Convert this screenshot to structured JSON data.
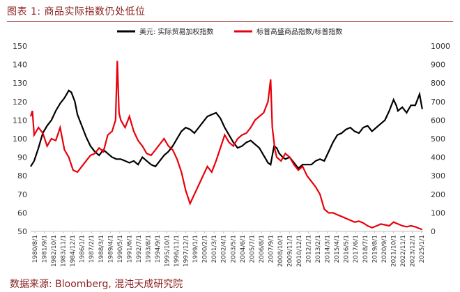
{
  "header": {
    "title": "图表 1: 商品实际指数仍处低位"
  },
  "footer": {
    "source": "数据来源: Bloomberg, 混沌天成研究院"
  },
  "chart_data": {
    "type": "line",
    "left_axis": {
      "min": 50,
      "max": 150,
      "step": 10,
      "labels": [
        "150",
        "140",
        "130",
        "120",
        "110",
        "100",
        "90",
        "80",
        "70",
        "60",
        "50"
      ]
    },
    "right_axis": {
      "min": 0,
      "max": 1000,
      "step": 100,
      "labels": [
        "1000",
        "900",
        "800",
        "700",
        "600",
        "500",
        "400",
        "300",
        "200",
        "100",
        "0"
      ]
    },
    "x_labels": [
      "1980/8/1",
      "1981/9/1",
      "1982/10/1",
      "1983/11/1",
      "1984/12/1",
      "1986/1/1",
      "1987/2/1",
      "1988/3/1",
      "1989/4/1",
      "1990/5/1",
      "1991/6/1",
      "1992/7/1",
      "1993/8/1",
      "1994/9/1",
      "1995/10/1",
      "1996/11/1",
      "1997/12/1",
      "1999/1/1",
      "2000/2/1",
      "2001/3/1",
      "2002/4/1",
      "2003/5/1",
      "2004/6/1",
      "2005/7/1",
      "2006/8/1",
      "2007/9/1",
      "2008/10/1",
      "2009/11/1",
      "2010/12/1",
      "2012/1/1",
      "2013/2/1",
      "2014/3/1",
      "2015/4/1",
      "2016/5/1",
      "2017/6/1",
      "2018/7/1",
      "2019/8/1",
      "2020/9/1",
      "2021/10/1",
      "2022/11/1",
      "2023/12/1",
      "2025/1/1"
    ],
    "series": [
      {
        "name": "美元: 实际贸易加权指数",
        "axis": "left",
        "color": "#000000",
        "x": [
          1980.6,
          1981.0,
          1981.5,
          1982.0,
          1982.5,
          1983.0,
          1983.5,
          1984.0,
          1984.5,
          1985.0,
          1985.3,
          1985.7,
          1986.0,
          1986.5,
          1987.0,
          1987.5,
          1988.0,
          1988.5,
          1989.0,
          1989.5,
          1990.0,
          1990.5,
          1991.0,
          1991.5,
          1992.0,
          1992.5,
          1993.0,
          1993.5,
          1994.0,
          1994.5,
          1995.0,
          1995.5,
          1996.0,
          1996.5,
          1997.0,
          1997.5,
          1998.0,
          1998.5,
          1999.0,
          1999.5,
          2000.0,
          2000.5,
          2001.0,
          2001.5,
          2002.0,
          2002.5,
          2003.0,
          2003.5,
          2004.0,
          2004.5,
          2005.0,
          2005.5,
          2006.0,
          2006.5,
          2007.0,
          2007.5,
          2008.0,
          2008.3,
          2008.7,
          2009.0,
          2009.3,
          2009.7,
          2010.0,
          2010.5,
          2011.0,
          2011.5,
          2012.0,
          2012.5,
          2013.0,
          2013.5,
          2014.0,
          2014.5,
          2015.0,
          2015.5,
          2016.0,
          2016.5,
          2017.0,
          2017.5,
          2018.0,
          2018.5,
          2019.0,
          2019.5,
          2020.0,
          2020.5,
          2021.0,
          2021.5,
          2022.0,
          2022.5,
          2022.8,
          2023.0,
          2023.5,
          2024.0,
          2024.5,
          2025.0,
          2025.5,
          2025.8
        ],
        "values": [
          85,
          88,
          95,
          103,
          107,
          110,
          115,
          119,
          122,
          126,
          125,
          120,
          113,
          107,
          101,
          96,
          93,
          91,
          94,
          92,
          90,
          89,
          89,
          88,
          87,
          88,
          86,
          90,
          88,
          86,
          85,
          88,
          91,
          93,
          96,
          100,
          104,
          106,
          105,
          103,
          106,
          109,
          112,
          113,
          114,
          111,
          106,
          102,
          98,
          95,
          96,
          98,
          99,
          97,
          95,
          91,
          87,
          86,
          96,
          95,
          92,
          90,
          89,
          90,
          87,
          84,
          86,
          86,
          86,
          88,
          89,
          88,
          93,
          98,
          102,
          103,
          105,
          106,
          104,
          103,
          106,
          107,
          104,
          106,
          108,
          110,
          115,
          121,
          118,
          115,
          117,
          114,
          118,
          118,
          124,
          116
        ]
      },
      {
        "name": "标普高盛商品指数/标普指数",
        "axis": "right",
        "color": "#e8000b",
        "x": [
          1980.6,
          1980.8,
          1981.0,
          1981.5,
          1982.0,
          1982.5,
          1983.0,
          1983.5,
          1984.0,
          1984.5,
          1985.0,
          1985.5,
          1986.0,
          1986.5,
          1987.0,
          1987.5,
          1988.0,
          1988.5,
          1989.0,
          1989.5,
          1990.0,
          1990.4,
          1990.6,
          1990.8,
          1991.0,
          1991.5,
          1992.0,
          1992.5,
          1993.0,
          1993.5,
          1994.0,
          1994.5,
          1995.0,
          1995.5,
          1996.0,
          1996.5,
          1997.0,
          1997.5,
          1998.0,
          1998.5,
          1999.0,
          1999.5,
          2000.0,
          2000.5,
          2001.0,
          2001.5,
          2002.0,
          2002.5,
          2003.0,
          2003.5,
          2004.0,
          2004.5,
          2005.0,
          2005.5,
          2006.0,
          2006.5,
          2007.0,
          2007.5,
          2008.0,
          2008.3,
          2008.5,
          2008.8,
          2009.0,
          2009.5,
          2010.0,
          2010.5,
          2011.0,
          2011.5,
          2012.0,
          2012.5,
          2013.0,
          2013.5,
          2014.0,
          2014.5,
          2015.0,
          2015.5,
          2016.0,
          2016.5,
          2017.0,
          2017.5,
          2018.0,
          2018.5,
          2019.0,
          2019.5,
          2020.0,
          2020.3,
          2020.8,
          2021.0,
          2021.5,
          2022.0,
          2022.5,
          2023.0,
          2023.5,
          2024.0,
          2024.5,
          2025.0,
          2025.5,
          2025.8
        ],
        "values": [
          620,
          650,
          520,
          560,
          530,
          460,
          500,
          490,
          560,
          440,
          400,
          330,
          320,
          350,
          380,
          410,
          420,
          450,
          430,
          520,
          540,
          600,
          920,
          640,
          600,
          560,
          620,
          540,
          490,
          460,
          420,
          410,
          440,
          470,
          500,
          460,
          440,
          390,
          320,
          220,
          150,
          200,
          250,
          300,
          350,
          320,
          380,
          450,
          520,
          480,
          460,
          500,
          520,
          530,
          560,
          600,
          620,
          640,
          700,
          820,
          560,
          440,
          400,
          380,
          420,
          400,
          360,
          330,
          350,
          300,
          270,
          240,
          200,
          120,
          100,
          100,
          90,
          80,
          70,
          60,
          50,
          55,
          45,
          30,
          20,
          25,
          35,
          40,
          35,
          30,
          50,
          40,
          30,
          25,
          30,
          25,
          15,
          10
        ]
      }
    ]
  }
}
